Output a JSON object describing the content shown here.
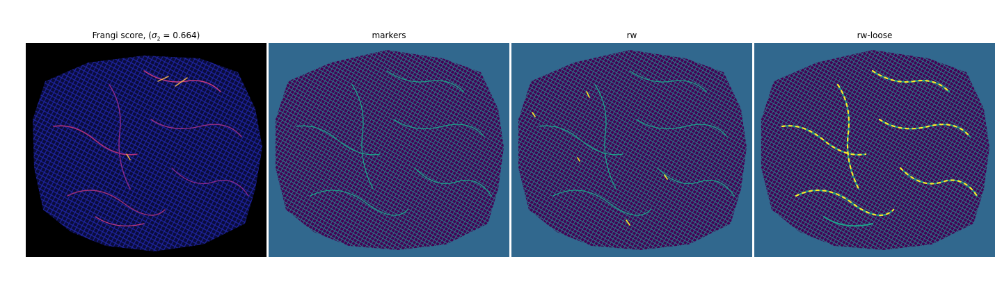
{
  "panels": [
    {
      "title_prefix": "Frangi score, (",
      "title_symbol": "σ",
      "title_subscript": "2",
      "title_suffix": " = 0.664)",
      "image": "frangi-vesselness-map",
      "colors": {
        "background": "#000000",
        "mesh": "#141a6e",
        "vessels": "#c83a80",
        "highlights": "#f2b04a"
      }
    },
    {
      "title": "markers",
      "image": "marker-labels-map",
      "colors": {
        "background": "#31688e",
        "mesh": "#440154",
        "labels": "#1f9e89"
      }
    },
    {
      "title": "rw",
      "image": "random-walker-segmentation",
      "colors": {
        "background": "#31688e",
        "mesh": "#440154",
        "labels": "#1f9e89",
        "vessels": "#fde725"
      }
    },
    {
      "title": "rw-loose",
      "image": "random-walker-loose-segmentation",
      "colors": {
        "background": "#31688e",
        "mesh": "#440154",
        "labels": "#1f9e89",
        "vessels": "#fde725"
      }
    }
  ]
}
